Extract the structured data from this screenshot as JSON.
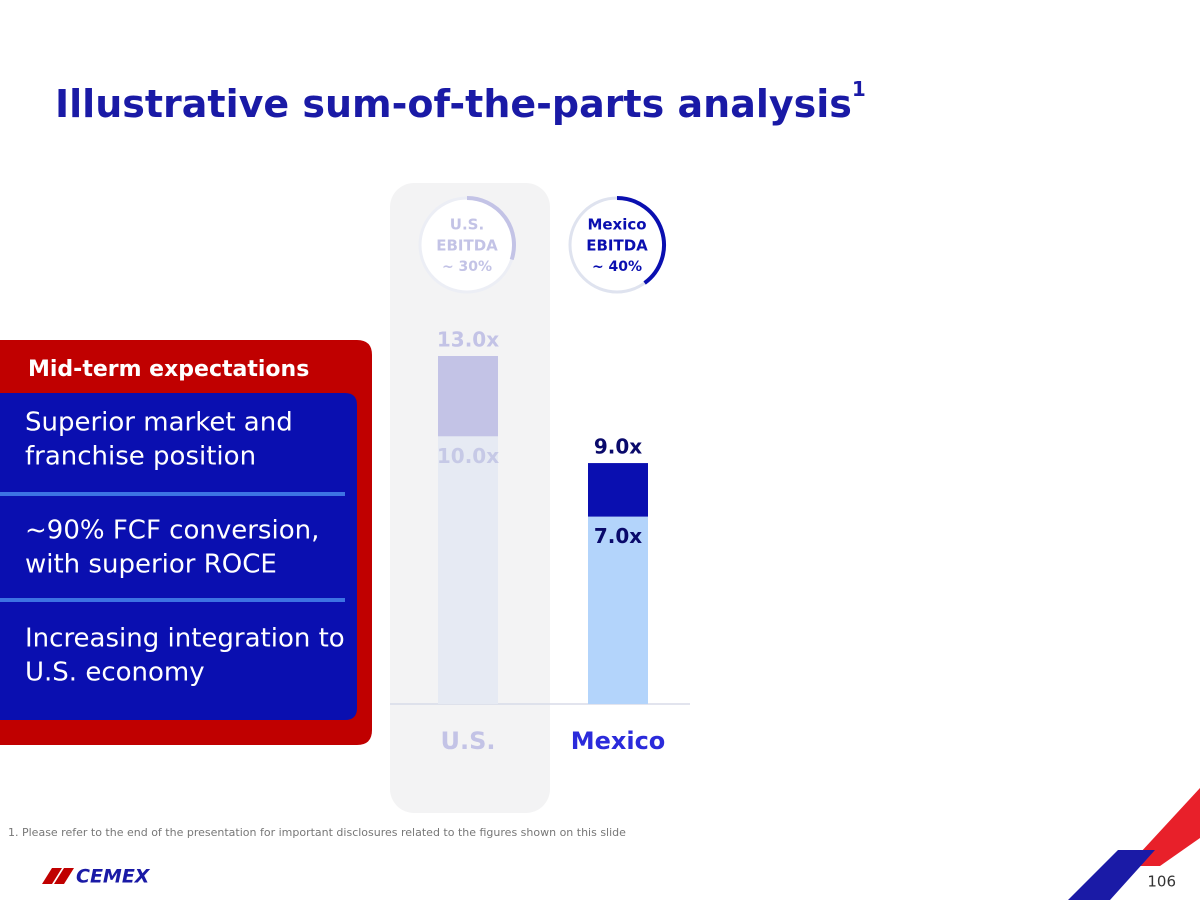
{
  "header": {
    "title": "Illustrative sum-of-the-parts analysis",
    "title_note": "1"
  },
  "panel": {
    "title": "Mid-term expectations",
    "items": [
      [
        "Superior market and",
        "franchise position"
      ],
      [
        "~90% FCF conversion,",
        "with superior ROCE"
      ],
      [
        "Increasing integration to",
        "U.S. economy"
      ]
    ]
  },
  "chart_data": {
    "type": "range_bar",
    "categories": [
      "U.S.",
      "Mexico"
    ],
    "category_colors": [
      "#c3c3e6",
      "#2b2bdb"
    ],
    "ylim": [
      0,
      13
    ],
    "series": [
      {
        "values": [
          10.0,
          7.0
        ],
        "value_labels": [
          "10.0x",
          "7.0x"
        ],
        "colors": [
          "#e6eaf3",
          "#b3d4fb"
        ],
        "label_colors": [
          "#c6c9e6",
          "#0a0a6b"
        ]
      },
      {
        "values": [
          13.0,
          9.0
        ],
        "value_labels": [
          "13.0x",
          "9.0x"
        ],
        "colors": [
          "#c3c3e6",
          "#0a0fb0"
        ],
        "label_colors": [
          "#c3c3e6",
          "#0a0a6b"
        ]
      }
    ],
    "badges": [
      {
        "lines": [
          "U.S.",
          "EBITDA"
        ],
        "value": 30,
        "value_label": "~ 30%",
        "color": "#c3c3e6"
      },
      {
        "lines": [
          "Mexico",
          "EBITDA"
        ],
        "value": 40,
        "value_label": "~ 40%",
        "color": "#0a0fb0"
      }
    ]
  },
  "footnote": "1. Please refer to the end of the presentation for important disclosures related to the figures shown on this slide",
  "logo": "CEMEX",
  "page_number": "106"
}
